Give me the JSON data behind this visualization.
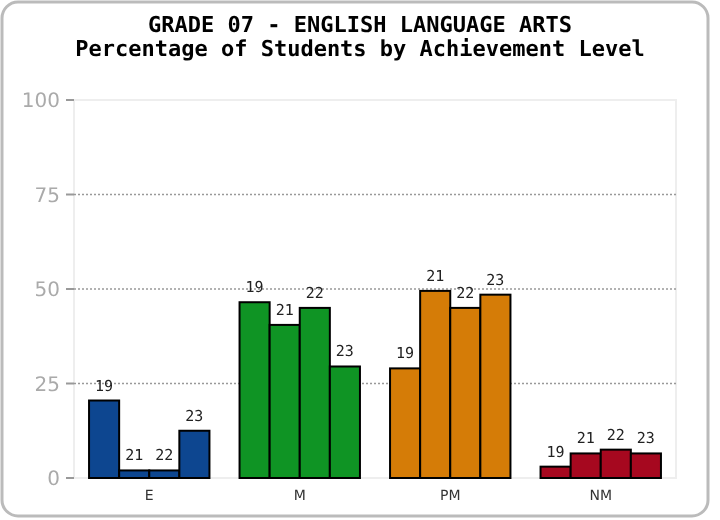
{
  "chart_data": {
    "type": "bar",
    "title": "GRADE 07 - ENGLISH LANGUAGE ARTS",
    "subtitle": "Percentage of Students by Achievement Level",
    "categories": [
      "E",
      "M",
      "PM",
      "NM"
    ],
    "series": [
      {
        "name": "19",
        "colors": [
          "#0d4690",
          "#0f9424",
          "#d57c07",
          "#a6081f"
        ],
        "values": [
          20.5,
          46.5,
          29,
          3
        ]
      },
      {
        "name": "21",
        "colors": [
          "#0d4690",
          "#0f9424",
          "#d57c07",
          "#a6081f"
        ],
        "values": [
          2,
          40.5,
          49.5,
          6.5
        ]
      },
      {
        "name": "22",
        "colors": [
          "#0d4690",
          "#0f9424",
          "#d57c07",
          "#a6081f"
        ],
        "values": [
          2,
          45,
          45,
          7.5
        ]
      },
      {
        "name": "23",
        "colors": [
          "#0d4690",
          "#0f9424",
          "#d57c07",
          "#a6081f"
        ],
        "values": [
          12.5,
          29.5,
          48.5,
          6.5
        ]
      }
    ],
    "ylim": [
      0,
      100
    ],
    "yticks": [
      0,
      25,
      50,
      75,
      100
    ],
    "grid": "y"
  }
}
